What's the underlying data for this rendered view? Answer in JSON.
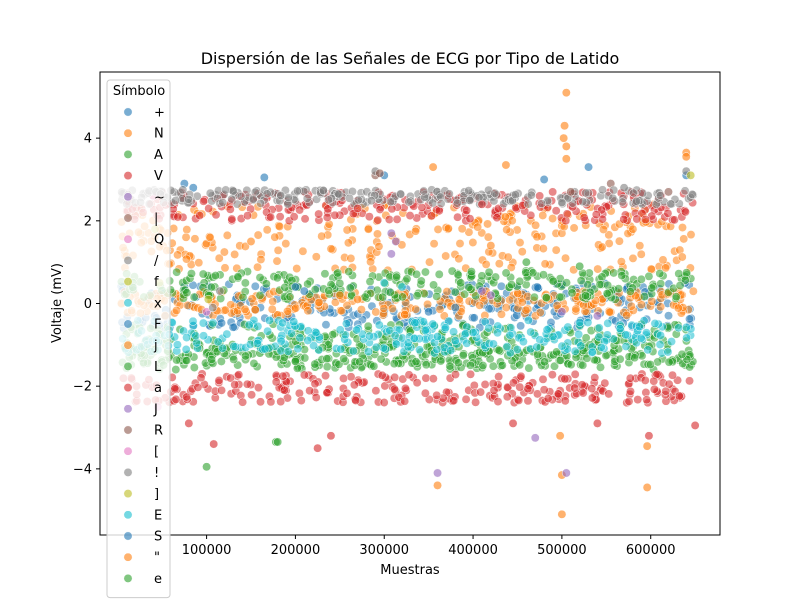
{
  "chart_data": {
    "type": "scatter",
    "title": "Dispersión de las Señales de ECG por Tipo de Latido",
    "xlabel": "Muestras",
    "ylabel": "Voltaje (mV)",
    "xlim": [
      -20000,
      678000
    ],
    "ylim": [
      -5.6,
      5.6
    ],
    "xticks": [
      100000,
      200000,
      300000,
      400000,
      500000,
      600000
    ],
    "yticks": [
      -4,
      -2,
      0,
      2,
      4
    ],
    "grid": false,
    "legend_title": "Símbolo",
    "legend_position": "upper-left",
    "series": [
      {
        "name": "+",
        "color": "#1f77b4",
        "bands": [
          [
            -0.6,
            0.5
          ]
        ],
        "points": [
          [
            75000,
            2.9
          ],
          [
            85000,
            2.8
          ],
          [
            165000,
            3.05
          ],
          [
            300000,
            3.1
          ],
          [
            480000,
            3.0
          ],
          [
            530000,
            3.3
          ],
          [
            640000,
            3.1
          ]
        ]
      },
      {
        "name": "N",
        "color": "#ff7f0e",
        "bands": [
          [
            0.8,
            2.4
          ],
          [
            -0.3,
            0.3
          ]
        ],
        "points": [
          [
            505000,
            5.1
          ],
          [
            503000,
            4.3
          ],
          [
            502000,
            4.0
          ],
          [
            505000,
            3.8
          ],
          [
            640000,
            3.65
          ],
          [
            505000,
            3.5
          ],
          [
            355000,
            3.3
          ],
          [
            437000,
            3.35
          ],
          [
            498000,
            -3.2
          ],
          [
            500000,
            -4.15
          ],
          [
            500000,
            -5.1
          ],
          [
            596000,
            -4.45
          ],
          [
            596000,
            -3.45
          ],
          [
            360000,
            -4.4
          ],
          [
            640000,
            3.55
          ]
        ]
      },
      {
        "name": "A",
        "color": "#2ca02c",
        "bands": [
          [
            0.1,
            0.8
          ],
          [
            -1.6,
            -1.0
          ]
        ],
        "points": [
          [
            100000,
            -3.95
          ],
          [
            178000,
            -3.35
          ],
          [
            460000,
            1.0
          ],
          [
            520000,
            0.9
          ]
        ]
      },
      {
        "name": "V",
        "color": "#d62728",
        "bands": [
          [
            -2.4,
            -1.7
          ],
          [
            2.0,
            2.7
          ]
        ],
        "points": [
          [
            225000,
            -3.5
          ],
          [
            108000,
            -3.4
          ],
          [
            80000,
            -2.9
          ],
          [
            240000,
            -3.2
          ],
          [
            540000,
            -2.9
          ],
          [
            598000,
            -3.2
          ],
          [
            650000,
            -2.95
          ],
          [
            445000,
            -2.9
          ]
        ]
      },
      {
        "name": "~",
        "color": "#9467bd",
        "bands": [],
        "points": [
          [
            308000,
            1.7
          ],
          [
            313000,
            1.5
          ],
          [
            308000,
            1.2
          ],
          [
            500000,
            -0.2
          ],
          [
            540000,
            -0.3
          ],
          [
            470000,
            -3.25
          ],
          [
            360000,
            -4.1
          ],
          [
            505000,
            -4.1
          ]
        ]
      },
      {
        "name": "|",
        "color": "#8c564b",
        "bands": [],
        "points": [
          [
            290000,
            3.1
          ],
          [
            555000,
            2.9
          ],
          [
            620000,
            2.7
          ]
        ]
      },
      {
        "name": "Q",
        "color": "#e377c2",
        "bands": [],
        "points": [
          [
            40000,
            2.6
          ],
          [
            45000,
            -2.5
          ]
        ]
      },
      {
        "name": "/",
        "color": "#7f7f7f",
        "bands": [
          [
            2.4,
            2.75
          ]
        ],
        "points": [
          [
            43000,
            2.7
          ],
          [
            48000,
            2.65
          ],
          [
            290000,
            3.2
          ],
          [
            640000,
            3.2
          ],
          [
            570000,
            2.8
          ]
        ]
      },
      {
        "name": "f",
        "color": "#bcbd22",
        "bands": [],
        "points": [
          [
            42000,
            1.8
          ],
          [
            47000,
            0.5
          ],
          [
            645000,
            3.1
          ]
        ]
      },
      {
        "name": "x",
        "color": "#17becf",
        "bands": [],
        "points": [
          [
            300000,
            0.5
          ],
          [
            320000,
            0.4
          ]
        ]
      },
      {
        "name": "F",
        "color": "#1f77b4",
        "bands": [],
        "points": [
          [
            350000,
            -0.2
          ],
          [
            380000,
            -0.1
          ]
        ]
      },
      {
        "name": "j",
        "color": "#ff7f0e",
        "bands": [],
        "points": [
          [
            250000,
            0.2
          ],
          [
            270000,
            0.1
          ]
        ]
      },
      {
        "name": "L",
        "color": "#2ca02c",
        "bands": [
          [
            -1.5,
            -0.5
          ]
        ],
        "points": [
          [
            160000,
            -1.2
          ],
          [
            200000,
            -1.4
          ]
        ]
      },
      {
        "name": "a",
        "color": "#d62728",
        "bands": [],
        "points": [
          [
            270000,
            2.3
          ],
          [
            410000,
            2.4
          ]
        ]
      },
      {
        "name": "J",
        "color": "#9467bd",
        "bands": [],
        "points": [
          [
            410000,
            0.3
          ],
          [
            420000,
            0.2
          ]
        ]
      },
      {
        "name": "R",
        "color": "#8c564b",
        "bands": [],
        "points": [
          [
            295000,
            3.15
          ],
          [
            510000,
            2.7
          ]
        ]
      },
      {
        "name": "[",
        "color": "#e377c2",
        "bands": [],
        "points": [
          [
            100000,
            -0.2
          ]
        ]
      },
      {
        "name": "!",
        "color": "#7f7f7f",
        "bands": [],
        "points": [
          [
            107000,
            -0.1
          ],
          [
            115000,
            0.3
          ]
        ]
      },
      {
        "name": "]",
        "color": "#bcbd22",
        "bands": [],
        "points": [
          [
            102000,
            0.1
          ]
        ]
      },
      {
        "name": "E",
        "color": "#17becf",
        "bands": [
          [
            -1.2,
            -0.4
          ]
        ],
        "points": [
          [
            360000,
            -0.8
          ],
          [
            380000,
            -0.9
          ],
          [
            400000,
            -0.7
          ],
          [
            490000,
            -0.8
          ]
        ]
      },
      {
        "name": "S",
        "color": "#1f77b4",
        "bands": [],
        "points": [
          [
            200000,
            0.4
          ],
          [
            210000,
            0.3
          ]
        ]
      },
      {
        "name": "\"",
        "color": "#ff7f0e",
        "bands": [],
        "points": [
          [
            150000,
            1.5
          ],
          [
            420000,
            1.4
          ]
        ]
      },
      {
        "name": "e",
        "color": "#2ca02c",
        "bands": [],
        "points": [
          [
            180000,
            -3.35
          ]
        ]
      }
    ]
  }
}
